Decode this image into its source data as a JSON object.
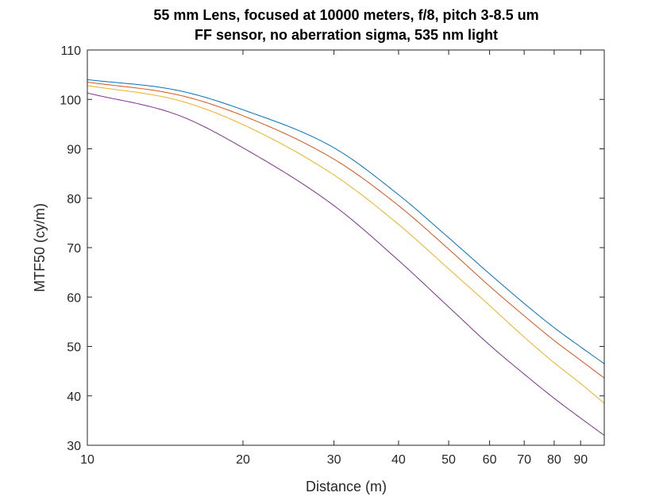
{
  "chart_data": {
    "type": "line",
    "title": [
      "55 mm Lens, focused at 10000 meters, f/8, pitch 3-8.5 um",
      "FF sensor, no aberration sigma, 535 nm light"
    ],
    "xlabel": "Distance (m)",
    "ylabel": "MTF50 (cy/m)",
    "xscale": "log",
    "xlim": [
      10,
      100
    ],
    "ylim": [
      30,
      110
    ],
    "xticks": [
      10,
      20,
      30,
      40,
      50,
      60,
      70,
      80,
      90
    ],
    "xtick_labels": [
      "10",
      "20",
      "30",
      "40",
      "50",
      "60",
      "70",
      "80",
      "90"
    ],
    "yticks": [
      30,
      40,
      50,
      60,
      70,
      80,
      90,
      100,
      110
    ],
    "ytick_labels": [
      "30",
      "40",
      "50",
      "60",
      "70",
      "80",
      "90",
      "100",
      "110"
    ],
    "grid": false,
    "legend": "none",
    "x": [
      10,
      15,
      20,
      30,
      40,
      50,
      60,
      70,
      80,
      90,
      100
    ],
    "series": [
      {
        "color": "#0072BD",
        "values": [
          104.0,
          101.8,
          97.9,
          90.2,
          80.7,
          72.0,
          64.7,
          58.7,
          53.8,
          49.9,
          46.5
        ]
      },
      {
        "color": "#D95319",
        "values": [
          103.5,
          100.9,
          96.7,
          87.9,
          78.5,
          69.7,
          62.2,
          56.2,
          51.2,
          47.2,
          43.6
        ]
      },
      {
        "color": "#EDB120",
        "values": [
          102.8,
          99.8,
          94.9,
          84.7,
          74.7,
          65.7,
          58.3,
          51.9,
          46.7,
          42.5,
          38.5
        ]
      },
      {
        "color": "#7E2F8E",
        "values": [
          101.3,
          96.8,
          90.2,
          78.5,
          67.4,
          58.0,
          50.3,
          44.4,
          39.5,
          35.5,
          32.0
        ]
      }
    ]
  }
}
